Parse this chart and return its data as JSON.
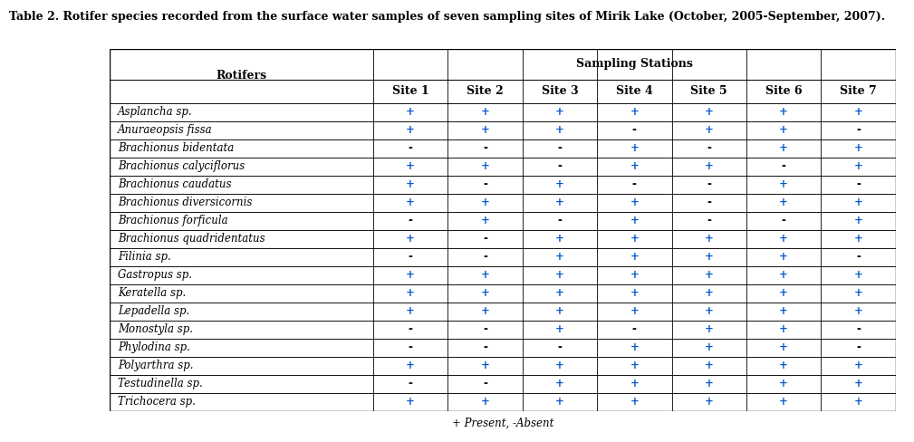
{
  "title": "Table 2. Rotifer species recorded from the surface water samples of seven sampling sites of Mirik Lake (October, 2005-September, 2007).",
  "species": [
    "Asplancha sp.",
    "Anuraeopsis fissa",
    "Brachionus bidentata",
    "Brachionus calyciflorus",
    "Brachionus caudatus",
    "Brachionus diversicornis",
    "Brachionus forficula",
    "Brachionus quadridentatus",
    "Filinia sp.",
    "Gastropus sp.",
    "Keratella sp.",
    "Lepadella sp.",
    "Monostyla sp.",
    "Phylodina sp.",
    "Polyarthra sp.",
    "Testudinella sp.",
    "Trichocera sp."
  ],
  "data": [
    [
      "+",
      "+",
      "+",
      "+",
      "+",
      "+",
      "+"
    ],
    [
      "+",
      "+",
      "+",
      "-",
      "+",
      "+",
      "-"
    ],
    [
      "-",
      "-",
      "-",
      "+",
      "-",
      "+",
      "+"
    ],
    [
      "+",
      "+",
      "-",
      "+",
      "+",
      "-",
      "+"
    ],
    [
      "+",
      "-",
      "+",
      "-",
      "-",
      "+",
      "-"
    ],
    [
      "+",
      "+",
      "+",
      "+",
      "-",
      "+",
      "+"
    ],
    [
      "-",
      "+",
      "-",
      "+",
      "-",
      "-",
      "+"
    ],
    [
      "+",
      "-",
      "+",
      "+",
      "+",
      "+",
      "+"
    ],
    [
      "-",
      "-",
      "+",
      "+",
      "+",
      "+",
      "-"
    ],
    [
      "+",
      "+",
      "+",
      "+",
      "+",
      "+",
      "+"
    ],
    [
      "+",
      "+",
      "+",
      "+",
      "+",
      "+",
      "+"
    ],
    [
      "+",
      "+",
      "+",
      "+",
      "+",
      "+",
      "+"
    ],
    [
      "-",
      "-",
      "+",
      "-",
      "+",
      "+",
      "-"
    ],
    [
      "-",
      "-",
      "-",
      "+",
      "+",
      "+",
      "-"
    ],
    [
      "+",
      "+",
      "+",
      "+",
      "+",
      "+",
      "+"
    ],
    [
      "-",
      "-",
      "+",
      "+",
      "+",
      "+",
      "+"
    ],
    [
      "+",
      "+",
      "+",
      "+",
      "+",
      "+",
      "+"
    ]
  ],
  "site_labels": [
    "Site 1",
    "Site 2",
    "Site 3",
    "Site 4",
    "Site 5",
    "Site 6",
    "Site 7"
  ],
  "footnote": "+ Present, -Absent",
  "bg_color": "#ffffff",
  "plus_color": "#0055cc",
  "minus_color": "#000000",
  "title_fontsize": 9.0,
  "header_fontsize": 9.0,
  "cell_fontsize": 8.5,
  "footnote_fontsize": 8.5
}
